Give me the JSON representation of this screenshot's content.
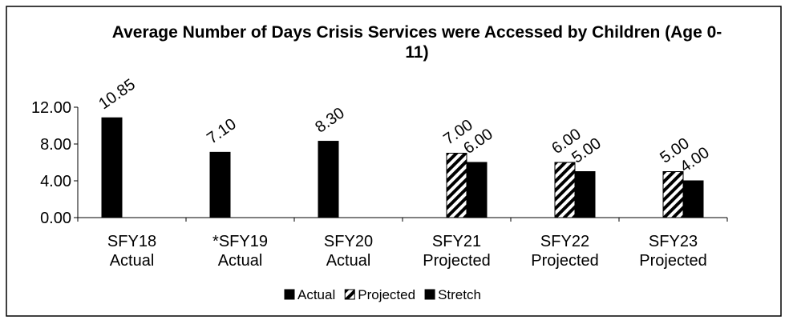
{
  "chart_data": {
    "type": "bar",
    "title": "Average Number of Days Crisis Services were Accessed by Children (Age 0-11)",
    "categories": [
      "SFY18 Actual",
      "*SFY19 Actual",
      "SFY20 Actual",
      "SFY21 Projected",
      "SFY22 Projected",
      "SFY23 Projected"
    ],
    "series": [
      {
        "name": "Actual",
        "color": "#000000",
        "values": [
          10.85,
          7.1,
          8.3,
          null,
          null,
          null
        ],
        "value_labels": [
          "10.85",
          "7.10",
          "8.30",
          null,
          null,
          null
        ]
      },
      {
        "name": "Projected",
        "color": "#000000",
        "hatch": true,
        "values": [
          null,
          null,
          null,
          7,
          6,
          5
        ],
        "value_labels": [
          null,
          null,
          null,
          "7.00",
          "6.00",
          "5.00"
        ]
      },
      {
        "name": "Stretch",
        "color": "#000000",
        "values": [
          null,
          null,
          null,
          6,
          5,
          4
        ],
        "value_labels": [
          null,
          null,
          null,
          "6.00",
          "5.00",
          "4.00"
        ]
      }
    ],
    "ylim": [
      0,
      12
    ],
    "yticks": [
      {
        "value": 0,
        "label": "0.00"
      },
      {
        "value": 4,
        "label": "4.00"
      },
      {
        "value": 8,
        "label": "8.00"
      },
      {
        "value": 12,
        "label": "12.00"
      }
    ],
    "legend": "bottom"
  }
}
